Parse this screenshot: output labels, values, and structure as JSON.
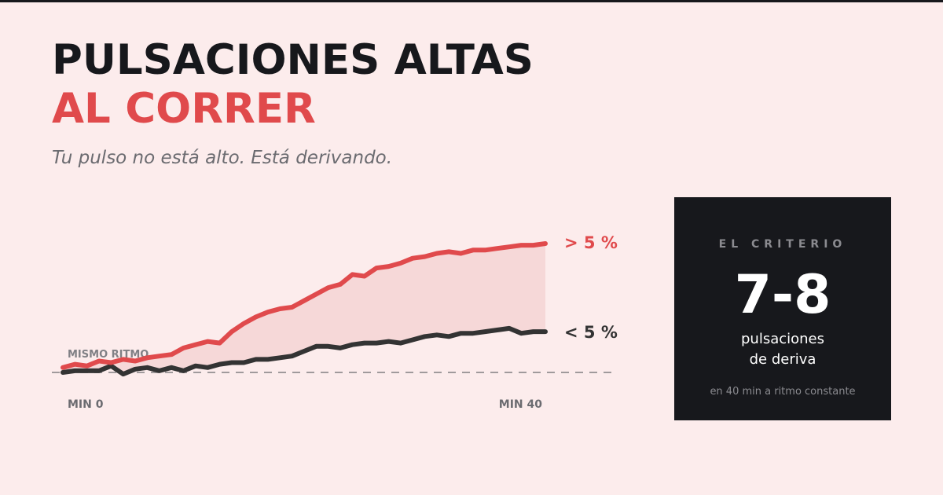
{
  "header": {
    "title_line1": "PULSACIONES ALTAS",
    "title_line2": "AL CORRER",
    "subtitle": "Tu pulso no está alto. Está derivando."
  },
  "colors": {
    "background": "#fcecec",
    "accent_red": "#e04a4c",
    "dark": "#17181c",
    "muted": "#6b6b70",
    "fill": "#f6d8d8"
  },
  "chart_data": {
    "type": "line",
    "x_start": 0,
    "x_end": 40,
    "x_tick_labels": [
      "MIN 0",
      "MIN 40"
    ],
    "baseline_label": "MISMO RITMO",
    "baseline_value": 0,
    "ylim": [
      -0.5,
      8
    ],
    "series": [
      {
        "name": "> 5 %",
        "color": "#e04a4c",
        "x": [
          0,
          1,
          2,
          3,
          4,
          5,
          6,
          7,
          8,
          9,
          10,
          11,
          12,
          13,
          14,
          15,
          16,
          17,
          18,
          19,
          20,
          21,
          22,
          23,
          24,
          25,
          26,
          27,
          28,
          29,
          30,
          31,
          32,
          33,
          34,
          35,
          36,
          37,
          38,
          39,
          40
        ],
        "values": [
          0.3,
          0.5,
          0.4,
          0.7,
          0.6,
          0.8,
          0.7,
          0.9,
          1.0,
          1.1,
          1.5,
          1.7,
          1.9,
          1.8,
          2.5,
          3.0,
          3.4,
          3.7,
          3.9,
          4.0,
          4.4,
          4.8,
          5.2,
          5.4,
          6.0,
          5.9,
          6.4,
          6.5,
          6.7,
          7.0,
          7.1,
          7.3,
          7.4,
          7.3,
          7.5,
          7.5,
          7.6,
          7.7,
          7.8,
          7.8,
          7.9
        ]
      },
      {
        "name": "< 5 %",
        "color": "#333333",
        "x": [
          0,
          1,
          2,
          3,
          4,
          5,
          6,
          7,
          8,
          9,
          10,
          11,
          12,
          13,
          14,
          15,
          16,
          17,
          18,
          19,
          20,
          21,
          22,
          23,
          24,
          25,
          26,
          27,
          28,
          29,
          30,
          31,
          32,
          33,
          34,
          35,
          36,
          37,
          38,
          39,
          40
        ],
        "values": [
          0.0,
          0.1,
          0.1,
          0.1,
          0.4,
          -0.1,
          0.2,
          0.3,
          0.1,
          0.3,
          0.1,
          0.4,
          0.3,
          0.5,
          0.6,
          0.6,
          0.8,
          0.8,
          0.9,
          1.0,
          1.3,
          1.6,
          1.6,
          1.5,
          1.7,
          1.8,
          1.8,
          1.9,
          1.8,
          2.0,
          2.2,
          2.3,
          2.2,
          2.4,
          2.4,
          2.5,
          2.6,
          2.7,
          2.4,
          2.5,
          2.5
        ]
      }
    ]
  },
  "panel": {
    "eyebrow": "EL CRITERIO",
    "big_number": "7-8",
    "unit_line1": "pulsaciones",
    "unit_line2": "de deriva",
    "footnote": "en 40 min a ritmo constante"
  }
}
